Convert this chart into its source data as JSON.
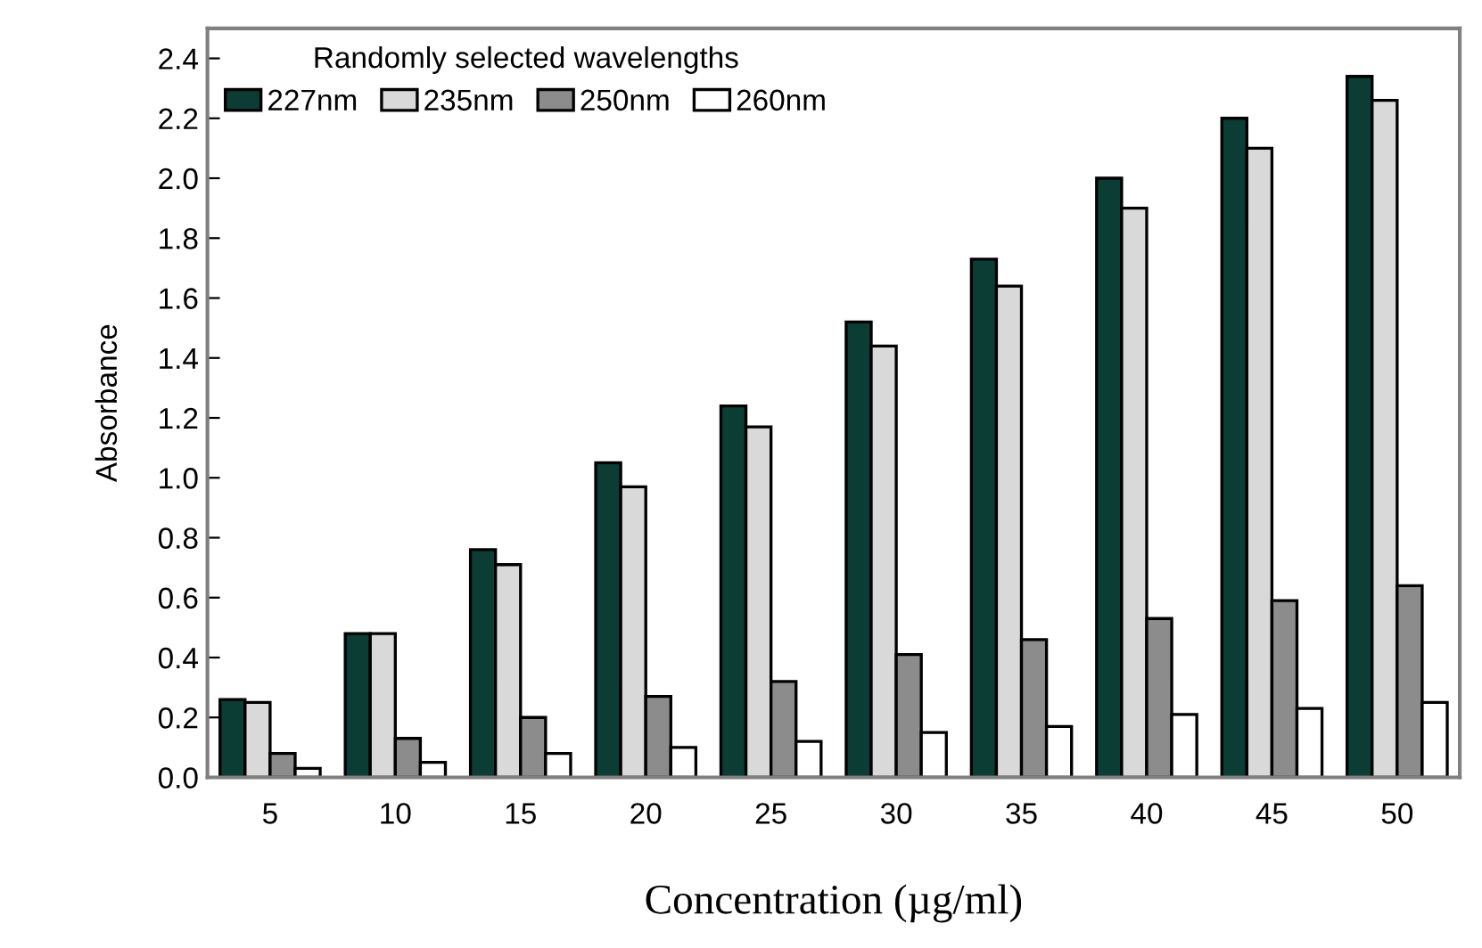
{
  "chart_data": {
    "type": "bar",
    "xlabel": "Concentration (µg/ml)",
    "ylabel": "Absorbance",
    "legend_title": "Randomly selected wavelengths",
    "categories": [
      "5",
      "10",
      "15",
      "20",
      "25",
      "30",
      "35",
      "40",
      "45",
      "50"
    ],
    "series": [
      {
        "name": "227nm",
        "color": "#0b3d35",
        "values": [
          0.26,
          0.48,
          0.76,
          1.05,
          1.24,
          1.52,
          1.73,
          2.0,
          2.2,
          2.34
        ]
      },
      {
        "name": "235nm",
        "color": "#d9d9d9",
        "values": [
          0.25,
          0.48,
          0.71,
          0.97,
          1.17,
          1.44,
          1.64,
          1.9,
          2.1,
          2.26
        ]
      },
      {
        "name": "250nm",
        "color": "#8c8c8c",
        "values": [
          0.08,
          0.13,
          0.2,
          0.27,
          0.32,
          0.41,
          0.46,
          0.53,
          0.59,
          0.64
        ]
      },
      {
        "name": "260nm",
        "color": "#ffffff",
        "values": [
          0.03,
          0.05,
          0.08,
          0.1,
          0.12,
          0.15,
          0.17,
          0.21,
          0.23,
          0.25
        ]
      }
    ],
    "ylim": [
      0,
      2.5
    ],
    "yticks": [
      {
        "value": 0,
        "label": "0.0"
      },
      0.2,
      0.4,
      0.6,
      0.8,
      {
        "value": 1,
        "label": "1.0"
      },
      1.2,
      1.4,
      1.6,
      1.8,
      {
        "value": 2,
        "label": "2.0"
      },
      2.2,
      2.4
    ],
    "grid": false,
    "legend": "top left"
  }
}
